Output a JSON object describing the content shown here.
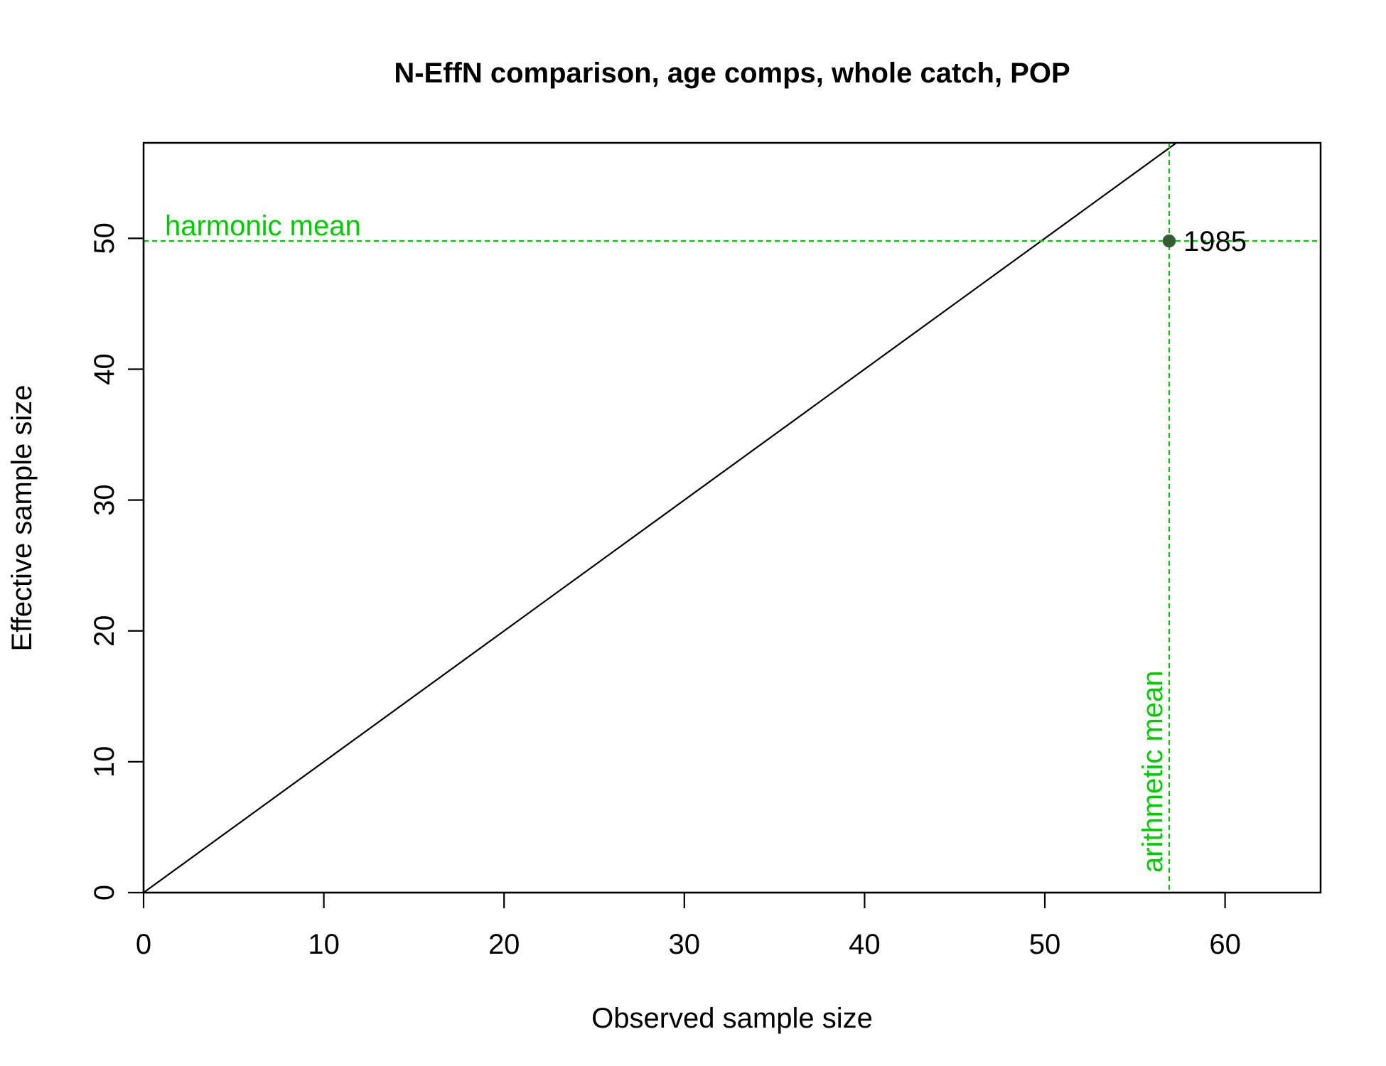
{
  "chart_data": {
    "type": "scatter",
    "title": "N-EffN comparison, age comps, whole catch, POP",
    "xlabel": "Observed sample size",
    "ylabel": "Effective sample size",
    "xlim": [
      0,
      65.3
    ],
    "ylim": [
      0,
      57.3
    ],
    "x_ticks": [
      0,
      10,
      20,
      30,
      40,
      50,
      60
    ],
    "y_ticks": [
      0,
      10,
      20,
      30,
      40,
      50
    ],
    "grid": false,
    "points": [
      {
        "x": 56.9,
        "y": 49.8,
        "label": "1985"
      }
    ],
    "reference_lines": [
      {
        "kind": "identity",
        "description": "1:1 line",
        "color": "#000000"
      },
      {
        "kind": "horizontal",
        "y": 49.8,
        "label": "harmonic mean",
        "color": "#00CC00",
        "dashed": true
      },
      {
        "kind": "vertical",
        "x": 56.9,
        "label": "arithmetic mean",
        "color": "#00CC00",
        "dashed": true
      }
    ],
    "point_color": "#2F5F2F"
  }
}
